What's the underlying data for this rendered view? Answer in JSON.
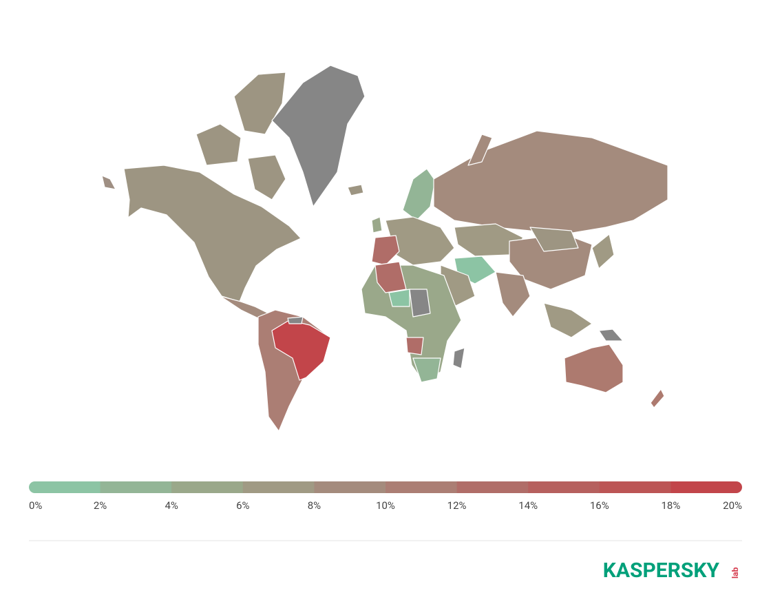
{
  "legend": {
    "labels": [
      "0%",
      "2%",
      "4%",
      "6%",
      "8%",
      "10%",
      "12%",
      "14%",
      "16%",
      "18%",
      "20%"
    ],
    "colors": [
      "#8cc4a4",
      "#93b596",
      "#9aa88a",
      "#a09a84",
      "#a48b7d",
      "#ab7e74",
      "#b06d68",
      "#b6605e",
      "#bc5555",
      "#c2454a"
    ]
  },
  "logo": {
    "name": "KASPERSKY",
    "suffix": "lab"
  }
}
